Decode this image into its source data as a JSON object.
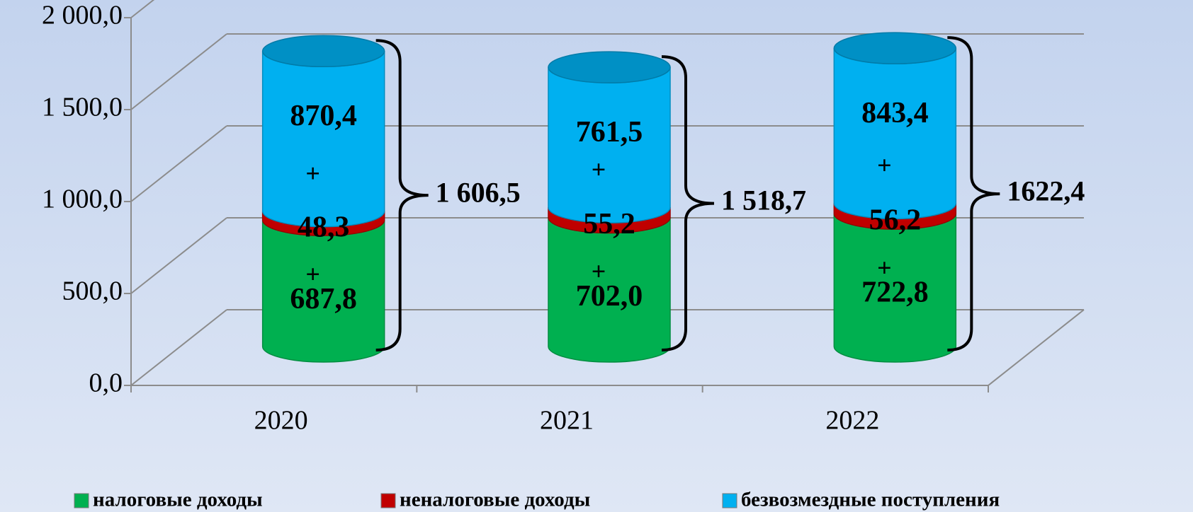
{
  "chart_data": {
    "type": "cylinder-stacked",
    "categories": [
      "2020",
      "2021",
      "2022"
    ],
    "series": [
      {
        "name": "налоговые доходы",
        "color": "#00b050",
        "values": [
          687.8,
          702.0,
          722.8
        ],
        "value_labels": [
          "687,8",
          "702,0",
          "722,8"
        ]
      },
      {
        "name": "неналоговые доходы",
        "color": "#c00000",
        "values": [
          48.3,
          55.2,
          56.2
        ],
        "value_labels": [
          "48,3",
          "55,2",
          "56,2"
        ]
      },
      {
        "name": "безвозмездные поступления",
        "color": "#00b0f0",
        "values": [
          870.4,
          761.5,
          843.4
        ],
        "value_labels": [
          "870,4",
          "761,5",
          "843,4"
        ]
      }
    ],
    "annotations": [
      "1 606,5",
      "1 518,7",
      "1622,4"
    ],
    "separator": "+",
    "ylim": [
      0,
      2000
    ],
    "yticks": [
      {
        "value": 0,
        "label": "0,0"
      },
      {
        "value": 500,
        "label": "500,0"
      },
      {
        "value": 1000,
        "label": "1 000,0"
      },
      {
        "value": 1500,
        "label": "1 500,0"
      },
      {
        "value": 2000,
        "label": "2 000,0"
      }
    ],
    "grid": true
  }
}
